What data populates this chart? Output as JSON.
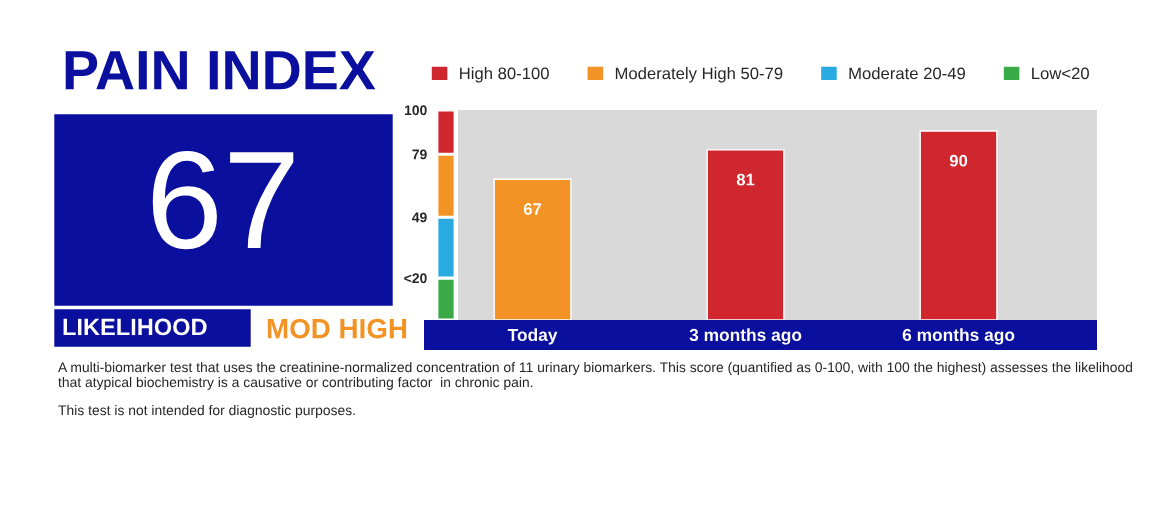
{
  "chart_data": [
    {
      "type": "other",
      "title": "PAIN INDEX",
      "annotations": [
        "67",
        "LIKELIHOOD",
        "MOD HIGH"
      ]
    },
    {
      "type": "bar",
      "stacked": true,
      "categories": [
        null
      ],
      "ylim": [
        0,
        100
      ],
      "yticks": [
        100,
        79,
        49,
        {
          "value": 20,
          "label": "<20"
        }
      ],
      "legend": "top",
      "tick_labels": "y",
      "series": [
        {
          "name": "Low<20",
          "color": "#3aaa48",
          "values": [
            20
          ]
        },
        {
          "name": "Moderate 20-49",
          "color": "#29abe2",
          "values": [
            29
          ]
        },
        {
          "name": "Moderately High 50-79",
          "color": "#f39325",
          "values": [
            30
          ]
        },
        {
          "name": "High 80-100",
          "color": "#d0262e",
          "values": [
            21
          ]
        }
      ]
    },
    {
      "type": "bar",
      "categories": [
        "Today",
        "3 months ago",
        "6 months ago"
      ],
      "values": [
        67,
        81,
        90
      ],
      "colors": [
        "#f39325",
        "#d0262e",
        "#d0262e"
      ],
      "data_labels": true,
      "ylim": [
        0,
        100
      ],
      "tick_labels": "x",
      "annotations": [
        "A multi-biomarker test that uses the creatinine-normalized concentration of 11 urinary biomarkers. This score (quantified as 0-100, with 100 the highest) assesses the likelihood that atypical biochemistry is a causative or contributing factor  in chronic pain.",
        "This test is not intended for diagnostic purposes."
      ]
    }
  ]
}
